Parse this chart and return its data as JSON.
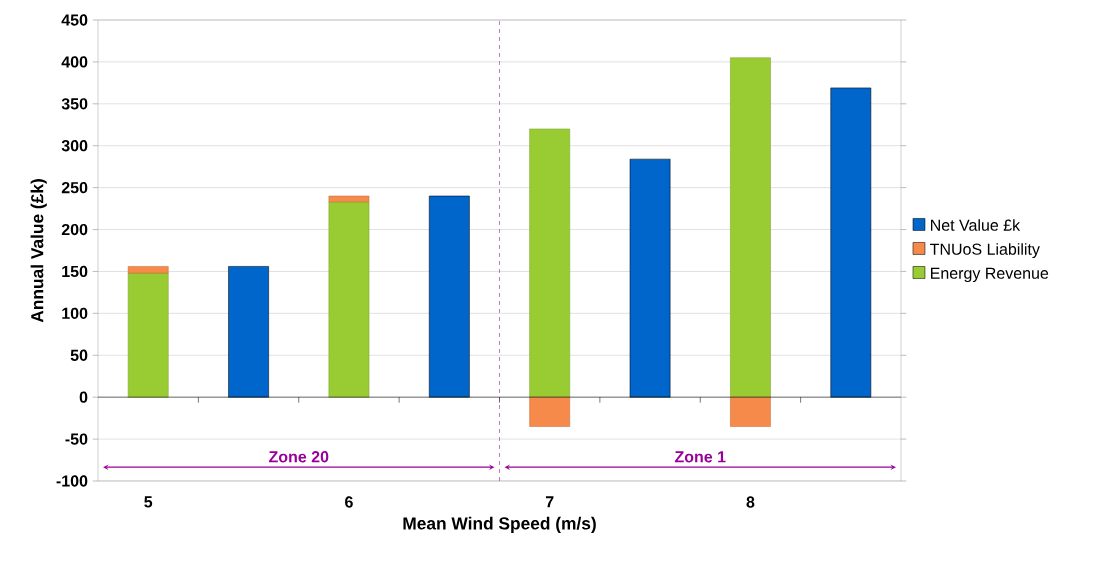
{
  "chart_data": {
    "type": "bar",
    "xlabel": "Mean Wind Speed (m/s)",
    "ylabel": "Annual Value (£k)",
    "categories": [
      "5",
      null,
      "6",
      null,
      "7",
      null,
      "8",
      null
    ],
    "stacked": true,
    "series": [
      {
        "name": "Energy Revenue",
        "color": "#99cc33",
        "values": [
          148,
          null,
          233,
          null,
          320,
          null,
          405,
          null
        ]
      },
      {
        "name": "TNUoS Liability",
        "color": "#f58a4b",
        "values": [
          8,
          null,
          7,
          null,
          -35,
          null,
          -35,
          null
        ]
      },
      {
        "name": "Net Value £k",
        "color": "#0066cc",
        "values": [
          null,
          156,
          null,
          240,
          null,
          284,
          null,
          369
        ]
      }
    ],
    "ylim": [
      -100,
      450
    ],
    "yticks": [
      -100,
      -50,
      0,
      50,
      100,
      150,
      200,
      250,
      300,
      350,
      400,
      450
    ],
    "grid": "y",
    "legend": "right",
    "annotations": [
      "Zone 20",
      "Zone 1"
    ]
  }
}
